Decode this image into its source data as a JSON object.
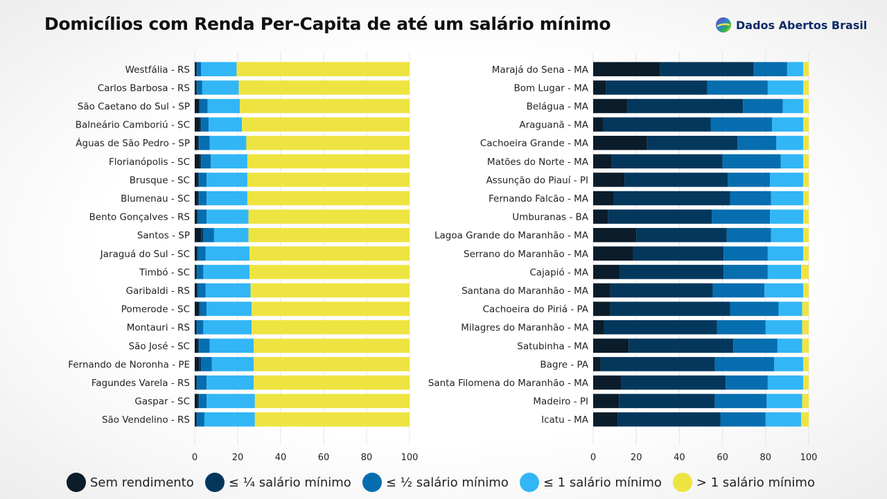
{
  "title": "Domicílios com Renda Per-Capita de até um salário mínimo",
  "brand": {
    "name": "Dados Abertos Brasil",
    "logo_icon": "brazil-globe-logo"
  },
  "categories": [
    {
      "label": "Sem rendimento",
      "color": "#0b1c2b"
    },
    {
      "label": "≤ ¼ salário mínimo",
      "color": "#03375c"
    },
    {
      "label": "≤ ½ salário mínimo",
      "color": "#066daf"
    },
    {
      "label": "≤ 1 salário mínimo",
      "color": "#32b6f6"
    },
    {
      "label": "> 1 salário mínimo",
      "color": "#eee441"
    }
  ],
  "chart_data": [
    {
      "type": "bar",
      "orientation": "horizontal",
      "stacked": true,
      "xlim": [
        0,
        100
      ],
      "xticks": [
        0,
        20,
        40,
        60,
        80,
        100
      ],
      "grid": true,
      "categories": [
        "Westfália - RS",
        "Carlos Barbosa - RS",
        "São Caetano do Sul - SP",
        "Balneário Camboriú - SC",
        "Águas de São Pedro - SP",
        "Florianópolis - SC",
        "Brusque - SC",
        "Blumenau - SC",
        "Bento Gonçalves - RS",
        "Santos - SP",
        "Jaraguá do Sul - SC",
        "Timbó - SC",
        "Garibaldi - RS",
        "Pomerode - SC",
        "Montauri - RS",
        "São José - SC",
        "Fernando de Noronha - PE",
        "Fagundes Varela - RS",
        "Gaspar - SC",
        "São Vendelino - RS"
      ],
      "series": [
        {
          "name": "Sem rendimento",
          "values": [
            0.5,
            0.5,
            2.0,
            2.5,
            1.5,
            2.5,
            1.5,
            1.5,
            1.0,
            3.0,
            1.0,
            0.5,
            1.0,
            2.0,
            0.5,
            1.5,
            2.0,
            0.5,
            1.5,
            0.5
          ]
        },
        {
          "name": "≤ ¼ salário mínimo",
          "values": [
            0.5,
            0.5,
            0.5,
            0.5,
            0.5,
            0.5,
            0.5,
            0.5,
            0.5,
            1.0,
            0.5,
            0.5,
            0.5,
            0.5,
            0.5,
            0.5,
            1.0,
            0.5,
            0.5,
            0.5
          ]
        },
        {
          "name": "≤ ½ salário mínimo",
          "values": [
            2.0,
            2.5,
            3.5,
            3.5,
            5.0,
            4.5,
            3.5,
            3.5,
            4.0,
            5.0,
            3.5,
            3.0,
            3.5,
            3.0,
            3.0,
            5.0,
            5.0,
            4.5,
            3.5,
            3.5
          ]
        },
        {
          "name": "≤ 1 salário mínimo",
          "values": [
            16.5,
            17.0,
            15.0,
            15.5,
            17.0,
            17.0,
            19.0,
            19.0,
            19.5,
            16.0,
            20.5,
            21.5,
            21.0,
            21.0,
            22.5,
            20.5,
            19.5,
            22.0,
            22.5,
            23.5
          ]
        },
        {
          "name": "> 1 salário mínimo",
          "values": [
            80.5,
            79.5,
            79.0,
            78.0,
            76.0,
            75.5,
            75.5,
            75.5,
            75.0,
            75.0,
            74.5,
            74.5,
            74.0,
            73.5,
            73.5,
            72.5,
            72.5,
            72.5,
            72.0,
            72.0
          ]
        }
      ]
    },
    {
      "type": "bar",
      "orientation": "horizontal",
      "stacked": true,
      "xlim": [
        0,
        100
      ],
      "xticks": [
        0,
        20,
        40,
        60,
        80,
        100
      ],
      "grid": true,
      "categories": [
        "Marajá do Sena - MA",
        "Bom Lugar - MA",
        "Belágua - MA",
        "Araguanã - MA",
        "Cachoeira Grande - MA",
        "Matões do Norte - MA",
        "Assunção do Piauí - PI",
        "Fernando Falcão - MA",
        "Umburanas - BA",
        "Lagoa Grande do Maranhão - MA",
        "Serrano do Maranhão - MA",
        "Cajapió - MA",
        "Santana do Maranhão - MA",
        "Cachoeira do Piriá - PA",
        "Milagres do Maranhão - MA",
        "Satubinha - MA",
        "Bagre - PA",
        "Santa Filomena do Maranhão - MA",
        "Madeiro - PI",
        "Icatu - MA"
      ],
      "series": [
        {
          "name": "Sem rendimento",
          "values": [
            31.0,
            6.0,
            16.0,
            4.5,
            25.0,
            8.5,
            14.5,
            9.5,
            7.0,
            20.0,
            18.5,
            12.5,
            8.0,
            8.0,
            5.0,
            16.5,
            3.5,
            13.0,
            12.0,
            11.5
          ]
        },
        {
          "name": "≤ ¼ salário mínimo",
          "values": [
            43.5,
            47.0,
            53.5,
            50.0,
            42.0,
            51.5,
            48.0,
            54.0,
            48.0,
            42.0,
            42.0,
            48.0,
            47.5,
            55.5,
            52.5,
            48.5,
            53.0,
            48.5,
            44.5,
            47.5
          ]
        },
        {
          "name": "≤ ½ salário mínimo",
          "values": [
            15.5,
            28.0,
            18.5,
            28.5,
            18.0,
            27.0,
            19.5,
            19.0,
            27.0,
            20.5,
            20.5,
            20.5,
            24.0,
            22.5,
            22.5,
            20.5,
            27.5,
            19.5,
            24.0,
            21.0
          ]
        },
        {
          "name": "≤ 1 salário mínimo",
          "values": [
            7.5,
            16.5,
            9.5,
            14.5,
            12.5,
            10.5,
            15.5,
            15.0,
            15.5,
            15.0,
            16.5,
            15.5,
            18.0,
            11.0,
            17.0,
            11.5,
            13.5,
            16.5,
            16.5,
            16.5
          ]
        },
        {
          "name": "> 1 salário mínimo",
          "values": [
            2.5,
            2.5,
            2.5,
            2.5,
            2.5,
            2.5,
            2.5,
            2.5,
            2.5,
            2.5,
            2.5,
            3.5,
            2.5,
            3.0,
            3.0,
            3.0,
            2.5,
            2.5,
            3.0,
            3.5
          ]
        }
      ]
    }
  ]
}
